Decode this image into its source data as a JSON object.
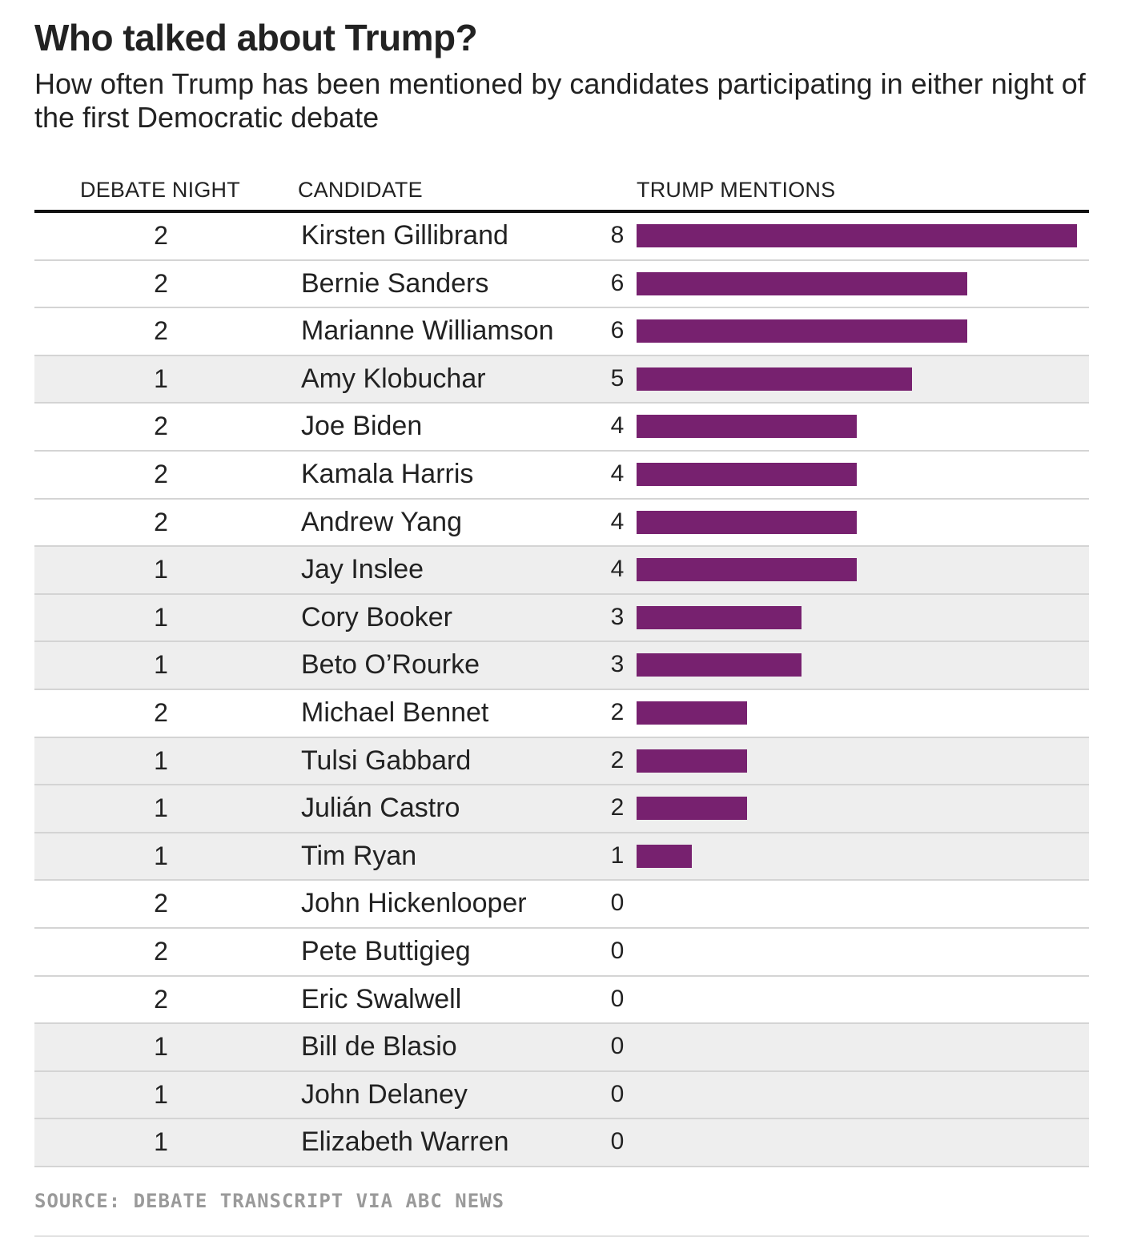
{
  "title": "Who talked about Trump?",
  "subtitle": "How often Trump has been mentioned by candidates participating in either night of the first Democratic debate",
  "columns": {
    "night": "DEBATE NIGHT",
    "candidate": "CANDIDATE",
    "mentions": "TRUMP MENTIONS"
  },
  "source": "SOURCE: DEBATE TRANSCRIPT VIA ABC NEWS",
  "colors": {
    "bar": "#77216f",
    "shade": "#eeeeee"
  },
  "chart_data": {
    "type": "bar",
    "orientation": "horizontal",
    "title": "Who talked about Trump?",
    "xlabel": "TRUMP MENTIONS",
    "ylabel": "CANDIDATE",
    "xlim": [
      0,
      8
    ],
    "rows": [
      {
        "night": 2,
        "candidate": "Kirsten Gillibrand",
        "mentions": 8
      },
      {
        "night": 2,
        "candidate": "Bernie Sanders",
        "mentions": 6
      },
      {
        "night": 2,
        "candidate": "Marianne Williamson",
        "mentions": 6
      },
      {
        "night": 1,
        "candidate": "Amy Klobuchar",
        "mentions": 5
      },
      {
        "night": 2,
        "candidate": "Joe Biden",
        "mentions": 4
      },
      {
        "night": 2,
        "candidate": "Kamala Harris",
        "mentions": 4
      },
      {
        "night": 2,
        "candidate": "Andrew Yang",
        "mentions": 4
      },
      {
        "night": 1,
        "candidate": "Jay Inslee",
        "mentions": 4
      },
      {
        "night": 1,
        "candidate": "Cory Booker",
        "mentions": 3
      },
      {
        "night": 1,
        "candidate": "Beto O’Rourke",
        "mentions": 3
      },
      {
        "night": 2,
        "candidate": "Michael Bennet",
        "mentions": 2
      },
      {
        "night": 1,
        "candidate": "Tulsi Gabbard",
        "mentions": 2
      },
      {
        "night": 1,
        "candidate": "Julián Castro",
        "mentions": 2
      },
      {
        "night": 1,
        "candidate": "Tim Ryan",
        "mentions": 1
      },
      {
        "night": 2,
        "candidate": "John Hickenlooper",
        "mentions": 0
      },
      {
        "night": 2,
        "candidate": "Pete Buttigieg",
        "mentions": 0
      },
      {
        "night": 2,
        "candidate": "Eric Swalwell",
        "mentions": 0
      },
      {
        "night": 1,
        "candidate": "Bill de Blasio",
        "mentions": 0
      },
      {
        "night": 1,
        "candidate": "John Delaney",
        "mentions": 0
      },
      {
        "night": 1,
        "candidate": "Elizabeth Warren",
        "mentions": 0
      }
    ]
  }
}
